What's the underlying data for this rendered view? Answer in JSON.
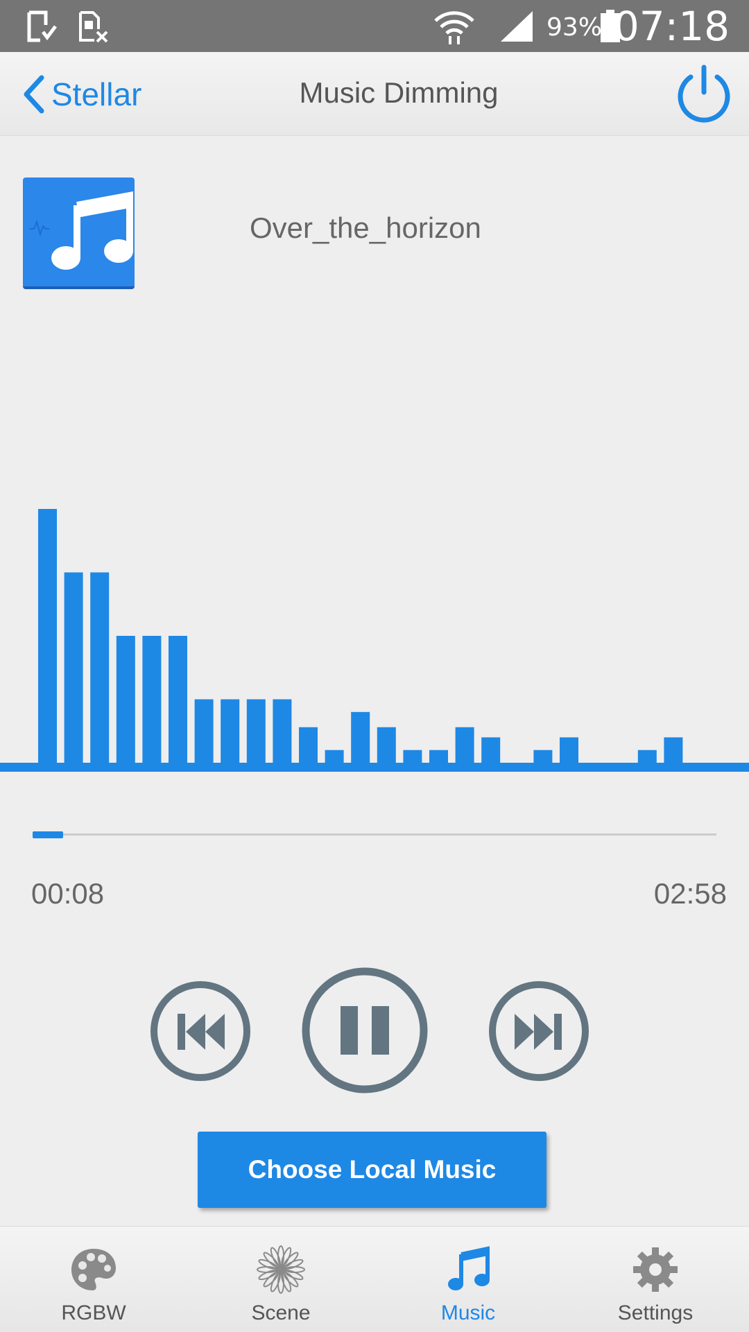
{
  "status_bar": {
    "battery_percent": "93%",
    "time": "07:18"
  },
  "header": {
    "back_label": "Stellar",
    "title": "Music Dimming"
  },
  "track": {
    "title": "Over_the_horizon"
  },
  "visualizer": {
    "accent_color": "#1e88e5",
    "bar_levels": [
      100,
      75,
      75,
      50,
      50,
      50,
      25,
      25,
      25,
      25,
      14,
      5,
      20,
      14,
      5,
      5,
      14,
      10,
      0,
      5,
      10,
      0,
      0,
      5,
      10
    ]
  },
  "playback": {
    "current_time": "00:08",
    "total_time": "02:58",
    "progress_fraction": 0.045
  },
  "controls": {
    "choose_label": "Choose Local Music"
  },
  "nav": {
    "items": [
      {
        "label": "RGBW",
        "icon": "palette-icon",
        "active": false
      },
      {
        "label": "Scene",
        "icon": "flower-icon",
        "active": false
      },
      {
        "label": "Music",
        "icon": "music-note-icon",
        "active": true
      },
      {
        "label": "Settings",
        "icon": "gear-icon",
        "active": false
      }
    ]
  }
}
